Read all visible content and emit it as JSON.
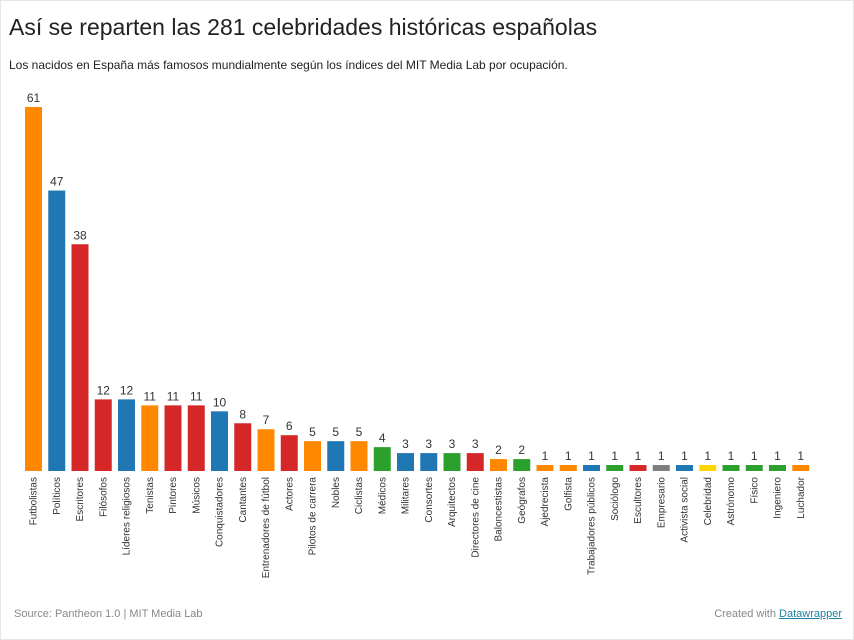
{
  "header": {
    "title": "Así se reparten las 281 celebridades históricas españolas",
    "subtitle": "Los nacidos en España más famosos mundialmente según los índices del MIT Media Lab por ocupación."
  },
  "footer": {
    "source": "Source: Pantheon 1.0 | MIT Media Lab",
    "created_with": "Created with",
    "link_text": "Datawrapper"
  },
  "colors": {
    "orange": "#ff8800",
    "blue": "#1f77b4",
    "red": "#d62728",
    "green": "#2ca02c",
    "gray": "#7f7f7f",
    "yellow": "#ffd700"
  },
  "chart_data": {
    "type": "bar",
    "ylim": [
      0,
      61
    ],
    "grid": false,
    "categories": [
      "Futbolistas",
      "Políticos",
      "Escritores",
      "Filósofos",
      "Líderes religiosos",
      "Tenistas",
      "Pintores",
      "Músicos",
      "Conquistadores",
      "Cantantes",
      "Entrenadores de fútbol",
      "Actores",
      "Pilotos de carrera",
      "Nobles",
      "Ciclistas",
      "Médicos",
      "Militares",
      "Consortes",
      "Arquitectos",
      "Directores de cine",
      "Baloncestistas",
      "Geógrafos",
      "Ajedrecista",
      "Golfista",
      "Trabajadores públicos",
      "Sociólogo",
      "Escultores",
      "Empresario",
      "Activista social",
      "Celebridad",
      "Astrónomo",
      "Físico",
      "Ingeniero",
      "Luchador"
    ],
    "values": [
      61,
      47,
      38,
      12,
      12,
      11,
      11,
      11,
      10,
      8,
      7,
      6,
      5,
      5,
      5,
      4,
      3,
      3,
      3,
      3,
      2,
      2,
      1,
      1,
      1,
      1,
      1,
      1,
      1,
      1,
      1,
      1,
      1,
      1
    ],
    "bar_colors": [
      "orange",
      "blue",
      "red",
      "red",
      "blue",
      "orange",
      "red",
      "red",
      "blue",
      "red",
      "orange",
      "red",
      "orange",
      "blue",
      "orange",
      "green",
      "blue",
      "blue",
      "green",
      "red",
      "orange",
      "green",
      "orange",
      "orange",
      "blue",
      "green",
      "red",
      "gray",
      "blue",
      "yellow",
      "green",
      "green",
      "green",
      "orange"
    ]
  }
}
